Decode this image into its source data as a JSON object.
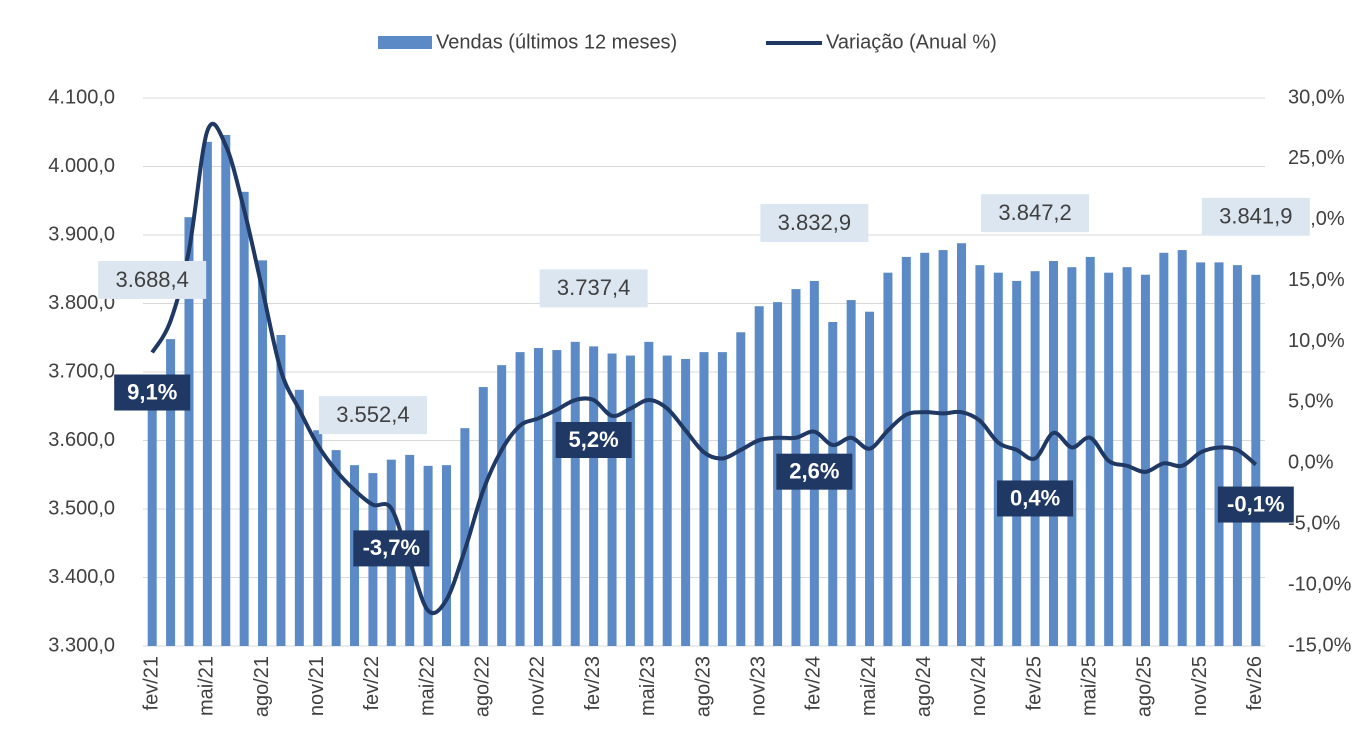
{
  "chart_data": {
    "type": "bar_line",
    "categories": [
      "fev/21",
      null,
      null,
      "mai/21",
      null,
      null,
      "ago/21",
      null,
      null,
      "nov/21",
      null,
      null,
      "fev/22",
      null,
      null,
      "mai/22",
      null,
      null,
      "ago/22",
      null,
      null,
      "nov/22",
      null,
      null,
      "fev/23",
      null,
      null,
      "mai/23",
      null,
      null,
      "ago/23",
      null,
      null,
      "nov/23",
      null,
      null,
      "fev/24",
      null,
      null,
      "mai/24",
      null,
      null,
      "ago/24",
      null,
      null,
      "nov/24",
      null,
      null,
      "fev/25",
      null,
      null,
      "mai/25",
      null,
      null,
      "ago/25",
      null,
      null,
      "nov/25",
      null,
      null,
      "fev/26"
    ],
    "series": [
      {
        "name": "Vendas (últimos 12 meses)",
        "type": "bar",
        "color": "#5b8ac6",
        "values": [
          3688.4,
          3748,
          3926,
          4036,
          4046,
          3963,
          3863,
          3754,
          3674,
          3615,
          3586,
          3564,
          3552.4,
          3572,
          3579,
          3563,
          3564,
          3618,
          3678,
          3710,
          3729,
          3735,
          3732,
          3744,
          3737.4,
          3727,
          3724,
          3744,
          3724,
          3719,
          3729,
          3729,
          3758,
          3796,
          3802,
          3821,
          3832.9,
          3773,
          3805,
          3788,
          3845,
          3868,
          3874,
          3878,
          3888,
          3856,
          3845,
          3833,
          3847.2,
          3862,
          3853,
          3868,
          3845,
          3853,
          3842,
          3874,
          3878,
          3860,
          3860,
          3856,
          3841.9
        ],
        "value_labels": [
          "3.688,4",
          null,
          null,
          null,
          null,
          null,
          null,
          null,
          null,
          null,
          null,
          null,
          "3.552,4",
          null,
          null,
          null,
          null,
          null,
          null,
          null,
          null,
          null,
          null,
          null,
          "3.737,4",
          null,
          null,
          null,
          null,
          null,
          null,
          null,
          null,
          null,
          null,
          null,
          "3.832,9",
          null,
          null,
          null,
          null,
          null,
          null,
          null,
          null,
          null,
          null,
          null,
          "3.847,2",
          null,
          null,
          null,
          null,
          null,
          null,
          null,
          null,
          null,
          null,
          null,
          "3.841,9"
        ]
      },
      {
        "name": "Variação (Anual %)",
        "type": "line",
        "axis": "y2",
        "color": "#1f3864",
        "values": [
          9.1,
          11.7,
          17.5,
          27.3,
          26.1,
          20.8,
          14.2,
          7.6,
          4.4,
          1.5,
          -0.6,
          -2.2,
          -3.4,
          -3.7,
          -8,
          -12.1,
          -11.2,
          -7.1,
          -2.2,
          1.1,
          3.1,
          3.7,
          4.4,
          5.2,
          5.2,
          3.9,
          4.5,
          5.2,
          4.5,
          2.7,
          0.9,
          0.4,
          1.1,
          1.9,
          2.1,
          2.1,
          2.6,
          1.5,
          2.1,
          1.2,
          2.7,
          4.0,
          4.2,
          4.1,
          4.2,
          3.5,
          1.7,
          1.1,
          0.4,
          2.5,
          1.3,
          2.1,
          0.2,
          -0.2,
          -0.7,
          0,
          -0.2,
          0.9,
          1.3,
          1.1,
          -0.1
        ],
        "value_labels": [
          "9,1%",
          null,
          null,
          null,
          null,
          null,
          null,
          null,
          null,
          null,
          null,
          null,
          null,
          "-3,7%",
          null,
          null,
          null,
          null,
          null,
          null,
          null,
          null,
          null,
          null,
          "5,2%",
          null,
          null,
          null,
          null,
          null,
          null,
          null,
          null,
          null,
          null,
          null,
          "2,6%",
          null,
          null,
          null,
          null,
          null,
          null,
          null,
          null,
          null,
          null,
          null,
          "0,4%",
          null,
          null,
          null,
          null,
          null,
          null,
          null,
          null,
          null,
          null,
          null,
          "-0,1%"
        ]
      }
    ],
    "ylim": [
      3300,
      4100
    ],
    "yticks": [
      {
        "value": 3300,
        "label": "3.300,0"
      },
      {
        "value": 3400,
        "label": "3.400,0"
      },
      {
        "value": 3500,
        "label": "3.500,0"
      },
      {
        "value": 3600,
        "label": "3.600,0"
      },
      {
        "value": 3700,
        "label": "3.700,0"
      },
      {
        "value": 3800,
        "label": "3.800,0"
      },
      {
        "value": 3900,
        "label": "3.900,0"
      },
      {
        "value": 4000,
        "label": "4.000,0"
      },
      {
        "value": 4100,
        "label": "4.100,0"
      }
    ],
    "y2lim": [
      -15,
      30
    ],
    "y2ticks": [
      {
        "value": -15,
        "label": "-15,0%"
      },
      {
        "value": -10,
        "label": "-10,0%"
      },
      {
        "value": -5,
        "label": "-5,0%"
      },
      {
        "value": 0,
        "label": "0,0%"
      },
      {
        "value": 5,
        "label": "5,0%"
      },
      {
        "value": 10,
        "label": "10,0%"
      },
      {
        "value": 15,
        "label": "15,0%"
      },
      {
        "value": 20,
        "label": "20,0%"
      },
      {
        "value": 25,
        "label": "25,0%"
      },
      {
        "value": 30,
        "label": "30,0%"
      }
    ],
    "grid": true,
    "legend": "top"
  }
}
